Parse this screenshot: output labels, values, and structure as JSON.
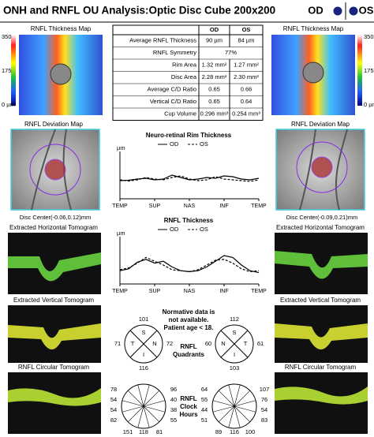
{
  "header": {
    "title": "ONH and RNFL OU Analysis:Optic Disc Cube 200x200",
    "od": "OD",
    "os": "OS"
  },
  "left": {
    "map_label": "RNFL Thickness Map",
    "scale": [
      "350",
      "175",
      "0 µm"
    ],
    "deviation_label": "RNFL Deviation Map",
    "disc_center": "Disc Center(-0.06,0.12)mm",
    "horizontal_label": "Extracted Horizontal Tomogram",
    "vertical_label": "Extracted Vertical Tomogram",
    "circular_label": "RNFL Circular Tomogram"
  },
  "right": {
    "map_label": "RNFL Thickness Map",
    "scale": [
      "350",
      "175",
      "0 µm"
    ],
    "deviation_label": "RNFL Deviation Map",
    "disc_center": "Disc Center(-0.09,0.21)mm",
    "horizontal_label": "Extracted Horizontal Tomogram",
    "vertical_label": "Extracted Vertical Tomogram",
    "circular_label": "RNFL Circular Tomogram"
  },
  "table": {
    "header": [
      "OD",
      "OS"
    ],
    "rows": [
      [
        "Average RNFL Thickness",
        "90 µm",
        "84 µm"
      ],
      [
        "RNFL Symmetry",
        "77%"
      ],
      [
        "Rim Area",
        "1.32 mm²",
        "1.27 mm²"
      ],
      [
        "Disc Area",
        "2.28 mm²",
        "2.30 mm²"
      ],
      [
        "Average C/D Ratio",
        "0.65",
        "0.66"
      ],
      [
        "Vertical C/D Ratio",
        "0.65",
        "0.64"
      ],
      [
        "Cup Volume",
        "0.296 mm³",
        "0.254 mm³"
      ]
    ]
  },
  "rim_chart": {
    "type": "line",
    "title": "Neuro-retinal Rim Thickness",
    "y_unit": "µm",
    "x_labels": [
      "TEMP",
      "SUP",
      "NAS",
      "INF",
      "TEMP"
    ],
    "ylim": [
      0,
      600
    ],
    "series": [
      {
        "name": "OD",
        "color": "#000000",
        "dashed": false,
        "values": [
          230,
          235,
          250,
          260,
          240,
          250,
          300,
          270,
          240,
          250,
          270,
          260,
          290,
          280,
          250,
          240,
          260
        ]
      },
      {
        "name": "OS",
        "color": "#000000",
        "dashed": true,
        "values": [
          240,
          225,
          240,
          270,
          250,
          240,
          270,
          290,
          250,
          230,
          240,
          280,
          250,
          240,
          230,
          220,
          240
        ]
      }
    ]
  },
  "rnfl_chart": {
    "type": "line",
    "title": "RNFL Thickness",
    "y_unit": "µm",
    "x_labels": [
      "TEMP",
      "SUP",
      "NAS",
      "INF",
      "TEMP"
    ],
    "ylim": [
      0,
      250
    ],
    "series": [
      {
        "name": "OD",
        "color": "#000000",
        "dashed": false,
        "values": [
          70,
          80,
          115,
          130,
          110,
          120,
          90,
          70,
          65,
          70,
          90,
          120,
          150,
          140,
          100,
          70,
          60
        ]
      },
      {
        "name": "OS",
        "color": "#000000",
        "dashed": true,
        "values": [
          75,
          85,
          110,
          140,
          120,
          100,
          75,
          70,
          65,
          75,
          100,
          125,
          130,
          110,
          80,
          65,
          70
        ]
      }
    ]
  },
  "normative_note": [
    "Normative data is",
    "not available.",
    "Patient age < 18."
  ],
  "quadrants": {
    "label": [
      "RNFL",
      "Quadrants"
    ],
    "od": {
      "letters": [
        "S",
        "T",
        "N",
        "I"
      ],
      "values": [
        101,
        71,
        72,
        116
      ]
    },
    "os": {
      "letters": [
        "S",
        "N",
        "T",
        "I"
      ],
      "values": [
        112,
        60,
        61,
        103
      ]
    }
  },
  "clock_hours": {
    "label": [
      "RNFL",
      "Clock",
      "Hours"
    ],
    "od": {
      "left": [
        78,
        54,
        54,
        82
      ],
      "right": [
        96,
        40,
        38,
        55
      ],
      "bottom": [
        151,
        118,
        81
      ]
    },
    "os": {
      "left": [
        64,
        55,
        44,
        51
      ],
      "right": [
        107,
        76,
        54,
        83
      ],
      "bottom": [
        89,
        116,
        100
      ]
    }
  }
}
